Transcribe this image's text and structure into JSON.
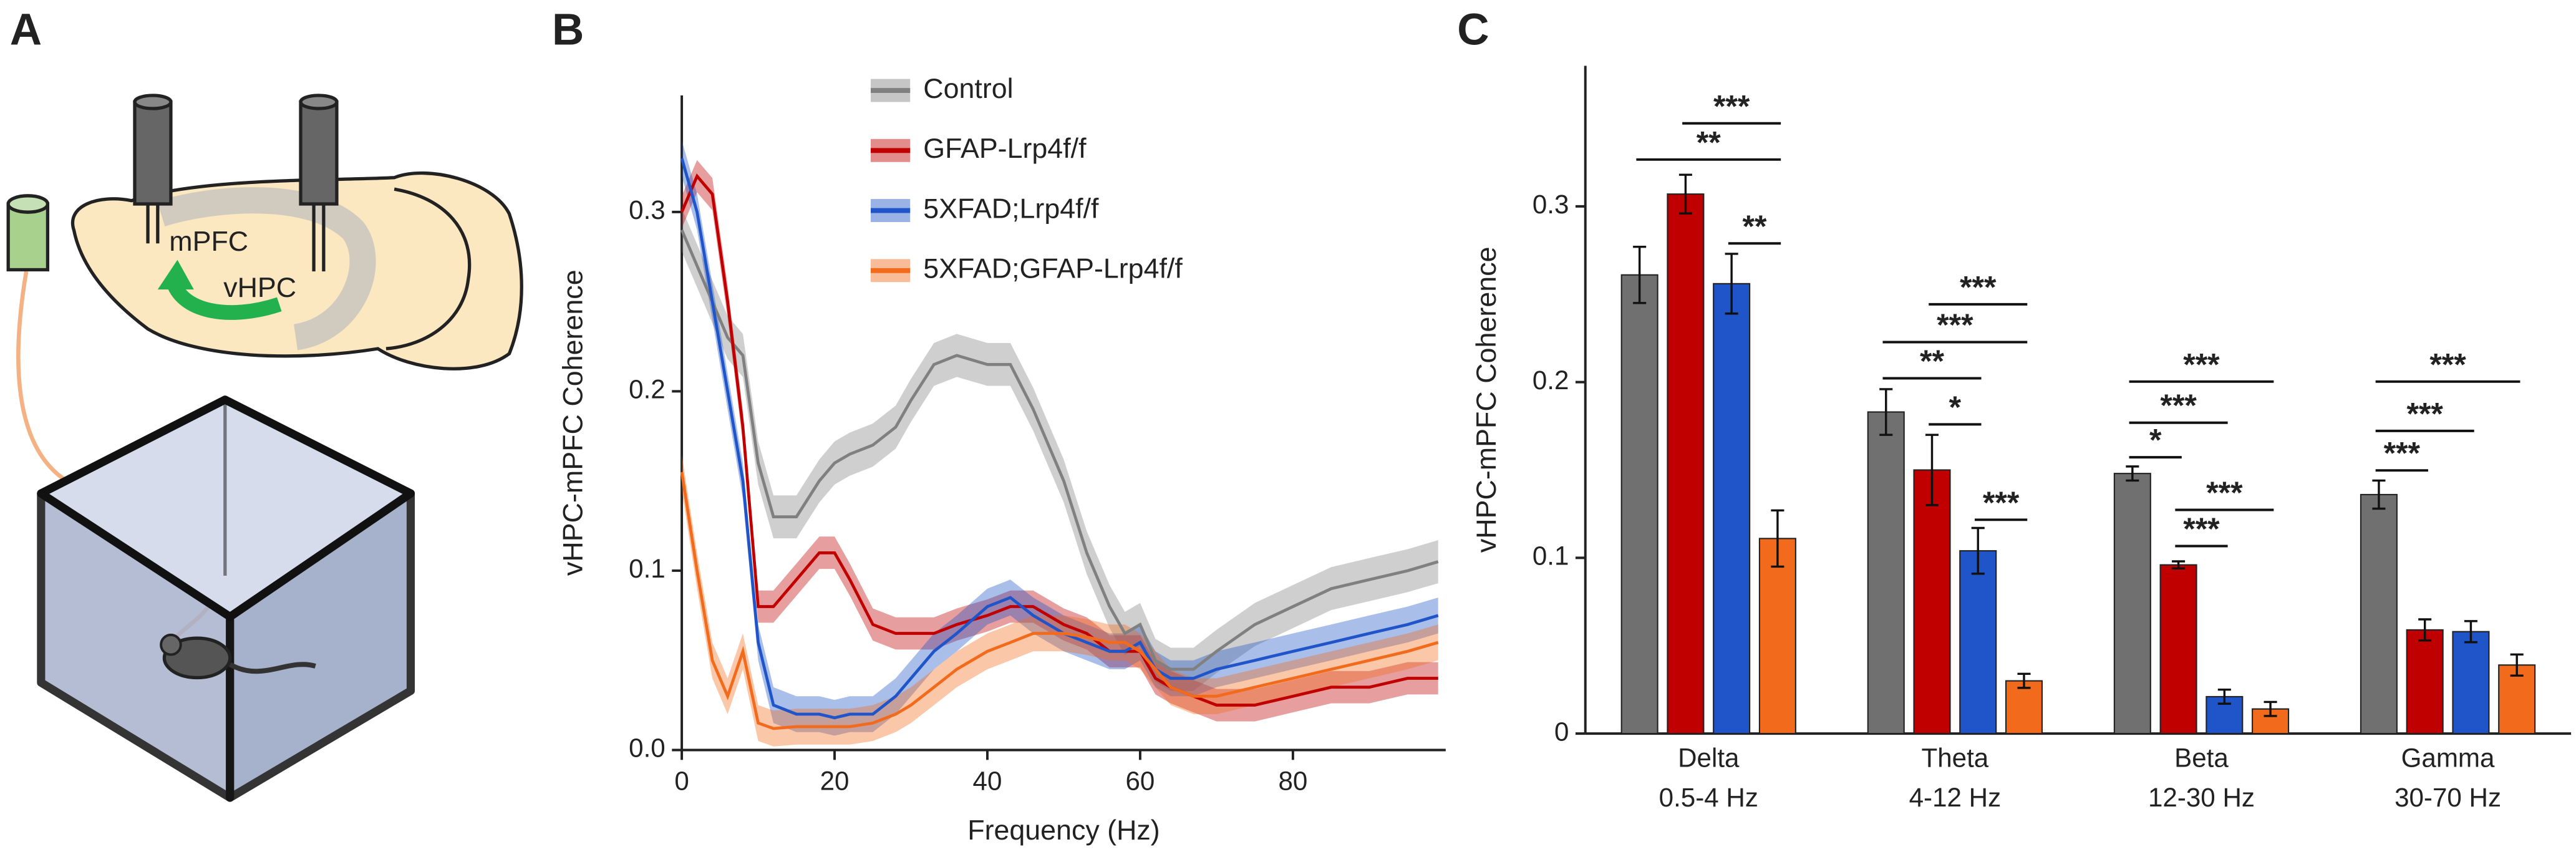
{
  "panel_a": {
    "label": "A",
    "regions": [
      "mPFC",
      "vHPC"
    ]
  },
  "chart_data": [
    {
      "type": "line",
      "panel_label": "B",
      "x_label": "Frequency (Hz)",
      "y_label": "vHPC-mPFC Coherence",
      "x": [
        0,
        2,
        4,
        6,
        8,
        10,
        12,
        15,
        18,
        20,
        22,
        25,
        28,
        30,
        33,
        36,
        40,
        43,
        46,
        50,
        53,
        56,
        58,
        60,
        62,
        64,
        67,
        70,
        75,
        80,
        85,
        90,
        95,
        99
      ],
      "series": [
        {
          "name": "Control",
          "color": "#808080",
          "error": 0.012,
          "values": [
            0.29,
            0.27,
            0.25,
            0.23,
            0.22,
            0.16,
            0.13,
            0.13,
            0.15,
            0.16,
            0.165,
            0.17,
            0.18,
            0.195,
            0.215,
            0.22,
            0.215,
            0.215,
            0.19,
            0.15,
            0.11,
            0.08,
            0.065,
            0.07,
            0.05,
            0.045,
            0.045,
            0.055,
            0.07,
            0.08,
            0.09,
            0.095,
            0.1,
            0.105
          ]
        },
        {
          "name": "GFAP-Lrp4f/f",
          "color": "#c00000",
          "error": 0.009,
          "values": [
            0.3,
            0.32,
            0.31,
            0.25,
            0.18,
            0.08,
            0.08,
            0.095,
            0.11,
            0.11,
            0.095,
            0.07,
            0.065,
            0.065,
            0.065,
            0.07,
            0.075,
            0.08,
            0.08,
            0.07,
            0.065,
            0.055,
            0.055,
            0.055,
            0.04,
            0.035,
            0.03,
            0.025,
            0.025,
            0.03,
            0.035,
            0.035,
            0.04,
            0.04
          ]
        },
        {
          "name": "5XFAD;Lrp4f/f",
          "color": "#1f55c8",
          "error": 0.01,
          "values": [
            0.33,
            0.3,
            0.25,
            0.2,
            0.15,
            0.06,
            0.025,
            0.02,
            0.02,
            0.018,
            0.02,
            0.02,
            0.03,
            0.04,
            0.055,
            0.065,
            0.08,
            0.085,
            0.075,
            0.065,
            0.06,
            0.055,
            0.055,
            0.06,
            0.045,
            0.04,
            0.04,
            0.045,
            0.05,
            0.055,
            0.06,
            0.065,
            0.07,
            0.075
          ]
        },
        {
          "name": "5XFAD;GFAP-Lrp4f/f",
          "color": "#f26b1d",
          "error": 0.01,
          "values": [
            0.155,
            0.1,
            0.05,
            0.03,
            0.055,
            0.015,
            0.012,
            0.013,
            0.013,
            0.013,
            0.013,
            0.015,
            0.02,
            0.025,
            0.035,
            0.045,
            0.055,
            0.06,
            0.065,
            0.065,
            0.063,
            0.06,
            0.06,
            0.055,
            0.045,
            0.035,
            0.03,
            0.03,
            0.035,
            0.04,
            0.045,
            0.05,
            0.055,
            0.06
          ]
        }
      ],
      "xlim": [
        0,
        100
      ],
      "ylim": [
        0,
        0.365
      ],
      "xticks": [
        0,
        20,
        40,
        60,
        80
      ],
      "yticks": [
        {
          "value": 0,
          "label": "0.0"
        },
        0.1,
        0.2,
        0.3
      ],
      "legend": "upper right"
    },
    {
      "type": "bar",
      "panel_label": "C",
      "y_label": "vHPC-mPFC Coherence",
      "categories": [
        "Delta",
        "Theta",
        "Beta",
        "Gamma"
      ],
      "category_ranges": [
        "0.5-4 Hz",
        "4-12 Hz",
        "12-30 Hz",
        "30-70 Hz"
      ],
      "series": [
        {
          "color": "#707070",
          "values": [
            0.261,
            0.183,
            0.148,
            0.136
          ],
          "errors": [
            0.016,
            0.013,
            0.004,
            0.008
          ]
        },
        {
          "color": "#c00000",
          "values": [
            0.307,
            0.15,
            0.096,
            0.059
          ],
          "errors": [
            0.011,
            0.02,
            0.002,
            0.006
          ]
        },
        {
          "color": "#1f55c8",
          "values": [
            0.256,
            0.104,
            0.021,
            0.058
          ],
          "errors": [
            0.017,
            0.013,
            0.004,
            0.006
          ]
        },
        {
          "color": "#f26b1d",
          "values": [
            0.111,
            0.03,
            0.014,
            0.039
          ],
          "errors": [
            0.016,
            0.004,
            0.004,
            0.006
          ]
        }
      ],
      "ylim": [
        0,
        0.38
      ],
      "yticks": [
        0,
        0.1,
        0.2,
        0.3
      ],
      "significance": [
        {
          "category": 0,
          "pair": [
            1,
            3
          ],
          "label": "***"
        },
        {
          "category": 0,
          "pair": [
            0,
            3
          ],
          "label": "**"
        },
        {
          "category": 0,
          "pair": [
            2,
            3
          ],
          "label": "**"
        },
        {
          "category": 1,
          "pair": [
            1,
            3
          ],
          "label": "***"
        },
        {
          "category": 1,
          "pair": [
            0,
            3
          ],
          "label": "***"
        },
        {
          "category": 1,
          "pair": [
            0,
            2
          ],
          "label": "**"
        },
        {
          "category": 1,
          "pair": [
            1,
            2
          ],
          "label": "*"
        },
        {
          "category": 1,
          "pair": [
            2,
            3
          ],
          "label": "***"
        },
        {
          "category": 2,
          "pair": [
            0,
            3
          ],
          "label": "***"
        },
        {
          "category": 2,
          "pair": [
            0,
            2
          ],
          "label": "***"
        },
        {
          "category": 2,
          "pair": [
            0,
            1
          ],
          "label": "*"
        },
        {
          "category": 2,
          "pair": [
            1,
            3
          ],
          "label": "***"
        },
        {
          "category": 2,
          "pair": [
            1,
            2
          ],
          "label": "***"
        },
        {
          "category": 3,
          "pair": [
            0,
            3
          ],
          "label": "***"
        },
        {
          "category": 3,
          "pair": [
            0,
            2
          ],
          "label": "***"
        },
        {
          "category": 3,
          "pair": [
            0,
            1
          ],
          "label": "***"
        }
      ]
    }
  ]
}
